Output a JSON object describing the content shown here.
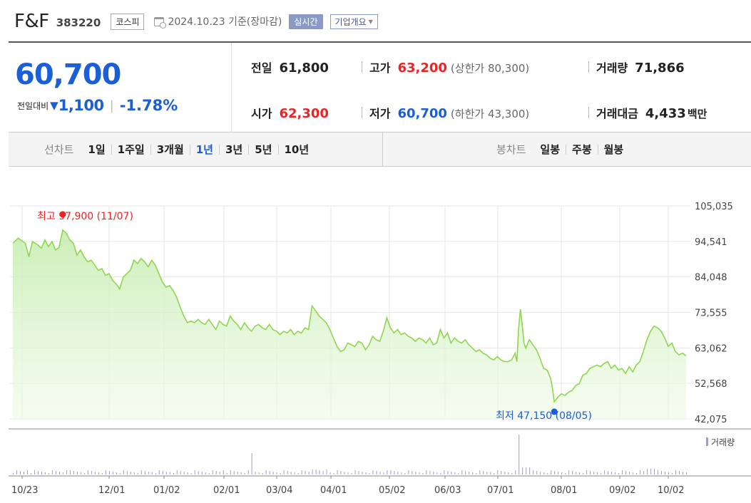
{
  "header": {
    "name": "F&F",
    "code": "383220",
    "market": "코스피",
    "date_text": "2024.10.23 기준(장마감)",
    "realtime_label": "실시간",
    "company_label": "기업개요"
  },
  "quote": {
    "price": "60,700",
    "change_label": "전일대비",
    "change": "1,100",
    "change_pct": "-1.78%",
    "prev_label": "전일",
    "prev": "61,800",
    "high_label": "고가",
    "high": "63,200",
    "upper_limit": "(상한가 80,300)",
    "volume_label": "거래량",
    "volume": "71,866",
    "open_label": "시가",
    "open": "62,300",
    "low_label": "저가",
    "low": "60,700",
    "lower_limit": "(하한가 43,300)",
    "amount_label": "거래대금",
    "amount": "4,433",
    "amount_unit": "백만"
  },
  "tabs": {
    "line_caption": "선차트",
    "line_tabs": [
      "1일",
      "1주일",
      "3개월",
      "1년",
      "3년",
      "5년",
      "10년"
    ],
    "active": "1년",
    "candle_caption": "봉차트",
    "candle_tabs": [
      "일봉",
      "주봉",
      "월봉"
    ]
  },
  "colors": {
    "up": "#ee2222",
    "down": "#1a5fd6",
    "line": "#8fd64f",
    "volume": "#a49ad0"
  },
  "chart_data": {
    "type": "area",
    "x_ticks": [
      "10/23",
      "12/01",
      "01/02",
      "02/01",
      "03/04",
      "04/01",
      "05/02",
      "06/03",
      "07/01",
      "08/01",
      "09/02",
      "10/02"
    ],
    "y_ticks": [
      "105,035",
      "94,541",
      "84,048",
      "73,555",
      "63,062",
      "52,568",
      "42,075"
    ],
    "ylim": [
      42075,
      105035
    ],
    "max_annotation": "최고 97,900 (11/07)",
    "min_annotation": "최저 47,150 (08/05)",
    "volume_label": "거래량",
    "series": [
      {
        "values": [
          [
            0,
            94000
          ],
          [
            3,
            95500
          ],
          [
            7,
            94000
          ],
          [
            9,
            90000
          ],
          [
            11,
            94500
          ],
          [
            14,
            93500
          ],
          [
            16,
            92500
          ],
          [
            18,
            95000
          ],
          [
            20,
            93000
          ],
          [
            22,
            94500
          ],
          [
            24,
            92000
          ],
          [
            26,
            92800
          ],
          [
            28,
            97900
          ],
          [
            30,
            97000
          ],
          [
            32,
            95000
          ],
          [
            34,
            94000
          ],
          [
            36,
            90500
          ],
          [
            38,
            92000
          ],
          [
            40,
            90000
          ],
          [
            42,
            88500
          ],
          [
            44,
            89000
          ],
          [
            46,
            87500
          ],
          [
            48,
            86000
          ],
          [
            50,
            86500
          ],
          [
            52,
            84500
          ],
          [
            54,
            85000
          ],
          [
            56,
            83000
          ],
          [
            58,
            82000
          ],
          [
            60,
            80500
          ],
          [
            62,
            84000
          ],
          [
            64,
            85000
          ],
          [
            66,
            86000
          ],
          [
            68,
            89000
          ],
          [
            70,
            88000
          ],
          [
            72,
            89500
          ],
          [
            74,
            88500
          ],
          [
            76,
            87000
          ],
          [
            78,
            89000
          ],
          [
            80,
            87500
          ],
          [
            82,
            85000
          ],
          [
            84,
            82500
          ],
          [
            86,
            81000
          ],
          [
            88,
            81500
          ],
          [
            90,
            80000
          ],
          [
            92,
            78000
          ],
          [
            94,
            75000
          ],
          [
            96,
            72500
          ],
          [
            98,
            70500
          ],
          [
            100,
            71000
          ],
          [
            102,
            70500
          ],
          [
            104,
            71500
          ],
          [
            106,
            70500
          ],
          [
            108,
            70000
          ],
          [
            110,
            71500
          ],
          [
            112,
            70000
          ],
          [
            114,
            68500
          ],
          [
            116,
            71000
          ],
          [
            118,
            70000
          ],
          [
            120,
            69500
          ],
          [
            122,
            72500
          ],
          [
            124,
            71000
          ],
          [
            126,
            70000
          ],
          [
            128,
            68500
          ],
          [
            130,
            70500
          ],
          [
            132,
            69000
          ],
          [
            134,
            68000
          ],
          [
            136,
            69500
          ],
          [
            138,
            70000
          ],
          [
            140,
            69000
          ],
          [
            142,
            68500
          ],
          [
            144,
            70000
          ],
          [
            146,
            68500
          ],
          [
            148,
            68000
          ],
          [
            150,
            67000
          ],
          [
            152,
            68000
          ],
          [
            154,
            67500
          ],
          [
            156,
            68500
          ],
          [
            158,
            67000
          ],
          [
            160,
            68000
          ],
          [
            162,
            67500
          ],
          [
            164,
            69000
          ],
          [
            166,
            68500
          ],
          [
            168,
            75500
          ],
          [
            170,
            74000
          ],
          [
            172,
            72500
          ],
          [
            174,
            71500
          ],
          [
            176,
            70500
          ],
          [
            178,
            68500
          ],
          [
            180,
            66000
          ],
          [
            182,
            63500
          ],
          [
            184,
            62000
          ],
          [
            186,
            62500
          ],
          [
            188,
            64500
          ],
          [
            190,
            64000
          ],
          [
            192,
            63500
          ],
          [
            194,
            65000
          ],
          [
            196,
            64500
          ],
          [
            198,
            62500
          ],
          [
            200,
            64000
          ],
          [
            202,
            66500
          ],
          [
            204,
            65500
          ],
          [
            206,
            65000
          ],
          [
            208,
            68000
          ],
          [
            210,
            72000
          ],
          [
            212,
            69000
          ],
          [
            214,
            67500
          ],
          [
            216,
            68500
          ],
          [
            218,
            67000
          ],
          [
            220,
            67500
          ],
          [
            222,
            66500
          ],
          [
            224,
            66000
          ],
          [
            226,
            65000
          ],
          [
            228,
            66000
          ],
          [
            230,
            65500
          ],
          [
            232,
            64500
          ],
          [
            234,
            66000
          ],
          [
            236,
            64000
          ],
          [
            238,
            64500
          ],
          [
            240,
            68500
          ],
          [
            242,
            66000
          ],
          [
            244,
            67500
          ],
          [
            246,
            64500
          ],
          [
            248,
            66000
          ],
          [
            250,
            65000
          ],
          [
            252,
            64500
          ],
          [
            254,
            65500
          ],
          [
            256,
            64000
          ],
          [
            258,
            63000
          ],
          [
            260,
            62000
          ],
          [
            262,
            62500
          ],
          [
            264,
            61500
          ],
          [
            266,
            61000
          ],
          [
            268,
            60000
          ],
          [
            270,
            59500
          ],
          [
            272,
            60500
          ],
          [
            274,
            59500
          ],
          [
            276,
            59000
          ],
          [
            278,
            59000
          ],
          [
            280,
            59500
          ],
          [
            282,
            61500
          ],
          [
            283,
            59000
          ],
          [
            284,
            69000
          ],
          [
            285,
            74500
          ],
          [
            286,
            70000
          ],
          [
            287,
            64500
          ],
          [
            288,
            63000
          ],
          [
            290,
            65500
          ],
          [
            292,
            64000
          ],
          [
            294,
            62500
          ],
          [
            296,
            60000
          ],
          [
            298,
            57000
          ],
          [
            300,
            56500
          ],
          [
            302,
            54000
          ],
          [
            303,
            51000
          ],
          [
            304,
            47150
          ],
          [
            306,
            48500
          ],
          [
            308,
            49500
          ],
          [
            310,
            49000
          ],
          [
            312,
            50000
          ],
          [
            314,
            50500
          ],
          [
            316,
            52000
          ],
          [
            318,
            52500
          ],
          [
            320,
            55000
          ],
          [
            322,
            55500
          ],
          [
            324,
            57000
          ],
          [
            326,
            57500
          ],
          [
            328,
            58000
          ],
          [
            330,
            57500
          ],
          [
            332,
            58500
          ],
          [
            334,
            59000
          ],
          [
            336,
            57000
          ],
          [
            338,
            58000
          ],
          [
            340,
            56500
          ],
          [
            342,
            57000
          ],
          [
            344,
            55500
          ],
          [
            346,
            57500
          ],
          [
            348,
            56000
          ],
          [
            350,
            58000
          ],
          [
            352,
            59000
          ],
          [
            354,
            62000
          ],
          [
            356,
            65500
          ],
          [
            358,
            68000
          ],
          [
            360,
            69500
          ],
          [
            362,
            69000
          ],
          [
            364,
            68000
          ],
          [
            366,
            66000
          ],
          [
            368,
            63500
          ],
          [
            370,
            64500
          ],
          [
            372,
            62000
          ],
          [
            374,
            61000
          ],
          [
            376,
            61500
          ],
          [
            378,
            60700
          ]
        ]
      }
    ]
  }
}
